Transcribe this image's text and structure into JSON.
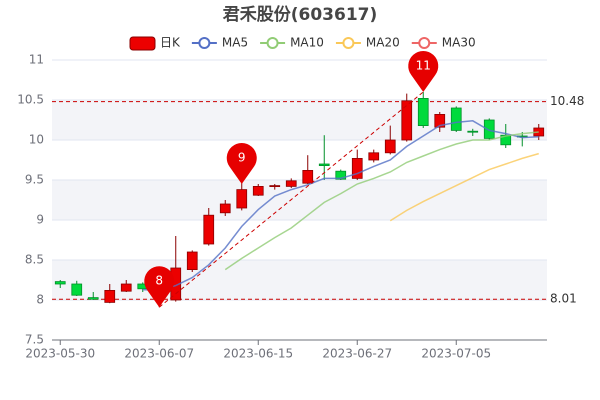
{
  "chart_data": {
    "type": "candlestick",
    "title": "君禾股份(603617)",
    "categories": [
      "2023-05-30",
      null,
      null,
      null,
      null,
      null,
      "2023-06-07",
      null,
      null,
      null,
      null,
      null,
      "2023-06-15",
      null,
      null,
      null,
      null,
      null,
      "2023-06-27",
      null,
      null,
      null,
      null,
      null,
      "2023-07-05",
      null,
      null,
      null,
      null,
      null
    ],
    "series": [
      {
        "name": "日K",
        "type": "candlestick",
        "color": "#ec0000",
        "down_color": "#00da3c",
        "open": [
          8.23,
          8.2,
          8.03,
          7.97,
          8.11,
          8.2,
          8.12,
          8.0,
          8.38,
          8.7,
          9.09,
          9.15,
          9.31,
          9.42,
          9.42,
          9.46,
          9.7,
          9.61,
          9.52,
          9.75,
          9.84,
          10.0,
          10.52,
          10.16,
          10.4,
          10.11,
          10.25,
          10.06,
          10.05,
          10.05
        ],
        "close": [
          8.2,
          8.06,
          8.01,
          8.12,
          8.2,
          8.14,
          8.2,
          8.4,
          8.6,
          9.06,
          9.2,
          9.38,
          9.42,
          9.43,
          9.49,
          9.62,
          9.68,
          9.51,
          9.77,
          9.84,
          10.0,
          10.49,
          10.18,
          10.32,
          10.12,
          10.1,
          10.02,
          9.94,
          10.04,
          10.15
        ],
        "high": [
          8.25,
          8.24,
          8.1,
          8.2,
          8.25,
          8.22,
          8.28,
          8.8,
          8.62,
          9.15,
          9.25,
          9.55,
          9.45,
          9.45,
          9.52,
          9.81,
          10.06,
          9.63,
          9.88,
          9.88,
          10.18,
          10.58,
          10.6,
          10.35,
          10.42,
          10.14,
          10.27,
          10.2,
          10.1,
          10.2
        ],
        "low": [
          8.15,
          8.05,
          8.0,
          7.96,
          8.1,
          8.1,
          7.91,
          7.98,
          8.35,
          8.68,
          9.05,
          9.12,
          9.3,
          9.38,
          9.4,
          9.45,
          9.5,
          9.5,
          9.5,
          9.72,
          9.82,
          9.98,
          10.15,
          10.1,
          10.1,
          10.05,
          10.0,
          9.9,
          9.92,
          10.0
        ]
      },
      {
        "name": "MA5",
        "type": "line",
        "color": "#5470c6",
        "values": [
          null,
          null,
          null,
          null,
          null,
          8.13,
          8.12,
          8.18,
          8.28,
          8.44,
          8.65,
          8.92,
          9.13,
          9.3,
          9.38,
          9.44,
          9.52,
          9.52,
          9.58,
          9.67,
          9.75,
          9.92,
          10.05,
          10.18,
          10.22,
          10.24,
          10.12,
          10.08,
          10.03,
          10.04
        ]
      },
      {
        "name": "MA10",
        "type": "line",
        "color": "#91cc75",
        "values": [
          null,
          null,
          null,
          null,
          null,
          null,
          null,
          null,
          null,
          null,
          8.38,
          8.52,
          8.65,
          8.78,
          8.9,
          9.06,
          9.22,
          9.33,
          9.45,
          9.52,
          9.6,
          9.72,
          9.8,
          9.88,
          9.95,
          10.0,
          10.0,
          10.05,
          10.08,
          10.1
        ]
      },
      {
        "name": "MA20",
        "type": "line",
        "color": "#fac858",
        "values": [
          null,
          null,
          null,
          null,
          null,
          null,
          null,
          null,
          null,
          null,
          null,
          null,
          null,
          null,
          null,
          null,
          null,
          null,
          null,
          null,
          8.99,
          9.12,
          9.23,
          9.33,
          9.43,
          9.53,
          9.63,
          9.7,
          9.77,
          9.83
        ]
      },
      {
        "name": "MA30",
        "type": "line",
        "color": "#ee6666",
        "values": [
          null,
          null,
          null,
          null,
          null,
          null,
          null,
          null,
          null,
          null,
          null,
          null,
          null,
          null,
          null,
          null,
          null,
          null,
          null,
          null,
          null,
          null,
          null,
          null,
          null,
          null,
          null,
          null,
          null,
          null
        ]
      }
    ],
    "markpoints": [
      {
        "label": "8",
        "index": 6,
        "value": 7.91
      },
      {
        "label": "9",
        "index": 11,
        "value": 9.45
      },
      {
        "label": "11",
        "index": 22,
        "value": 10.6
      }
    ],
    "marklines": [
      10.48,
      8.01
    ],
    "ylim": [
      7.5,
      11
    ],
    "yticks": [
      7.5,
      8,
      8.5,
      9,
      9.5,
      10,
      10.5,
      11
    ],
    "grid": true
  }
}
